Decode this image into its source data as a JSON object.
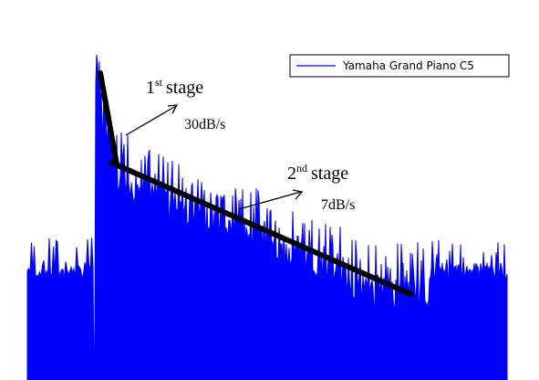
{
  "chart_data": {
    "type": "area",
    "title": "",
    "xlabel": "",
    "ylabel": "",
    "legend": {
      "position": "top-right",
      "entries": [
        {
          "name": "Yamaha Grand Piano C5",
          "color": "#0000ff"
        }
      ]
    },
    "series": [
      {
        "name": "Yamaha Grand Piano C5",
        "color": "#0000ff"
      }
    ],
    "grid": false,
    "stages": [
      {
        "ordinal": "1",
        "suffix": "st",
        "word": "stage",
        "rate": "30dB/s"
      },
      {
        "ordinal": "2",
        "suffix": "nd",
        "word": "stage",
        "rate": "7dB/s"
      }
    ],
    "fit_line_color": "#000000"
  }
}
